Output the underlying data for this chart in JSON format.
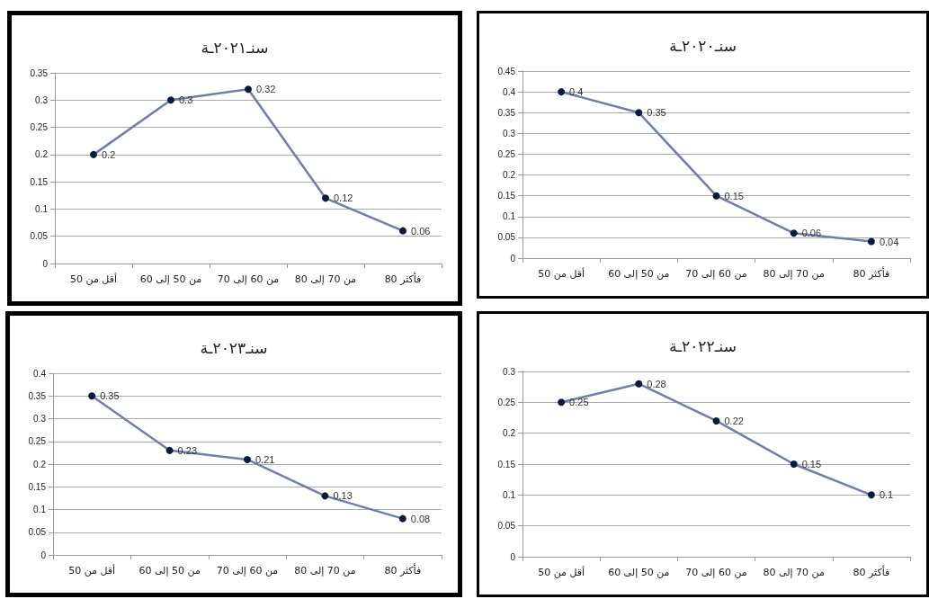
{
  "chart_data": [
    {
      "type": "line",
      "title": "سنـ٢٠٢١ـة",
      "categories": [
        "أقل من 50",
        "من 50 إلى 60",
        "من 60 إلى 70",
        "من 70 إلى 80",
        "80 فأكثر"
      ],
      "series": [
        {
          "color": "#6f7fa6",
          "values": [
            0.2,
            0.3,
            0.32,
            0.12,
            0.06
          ]
        }
      ],
      "ylim": [
        0,
        0.35
      ],
      "yticks": [
        0,
        0.05,
        0.1,
        0.15,
        0.2,
        0.25,
        0.3,
        0.35
      ],
      "grid": "y",
      "marker": "circle",
      "data_labels": true
    },
    {
      "type": "line",
      "title": "سنـ٢٠٢٠ـة",
      "categories": [
        "أقل من 50",
        "من 50 إلى 60",
        "من 60 إلى 70",
        "من 70 إلى 80",
        "80 فأكثر"
      ],
      "series": [
        {
          "color": "#6f7fa6",
          "values": [
            0.4,
            0.35,
            0.15,
            0.06,
            0.04
          ]
        }
      ],
      "ylim": [
        0,
        0.45
      ],
      "yticks": [
        0,
        0.05,
        0.1,
        0.15,
        0.2,
        0.25,
        0.3,
        0.35,
        0.4,
        0.45
      ],
      "grid": "y",
      "marker": "circle",
      "data_labels": true
    },
    {
      "type": "line",
      "title": "سنـ٢٠٢٣ـة",
      "categories": [
        "أقل من 50",
        "من 50 إلى 60",
        "من 60 إلى 70",
        "من 70 إلى 80",
        "80 فأكثر"
      ],
      "series": [
        {
          "color": "#6f7fa6",
          "values": [
            0.35,
            0.23,
            0.21,
            0.13,
            0.08
          ]
        }
      ],
      "ylim": [
        0,
        0.4
      ],
      "yticks": [
        0,
        0.05,
        0.1,
        0.15,
        0.2,
        0.25,
        0.3,
        0.35,
        0.4
      ],
      "grid": "y",
      "marker": "circle",
      "data_labels": true
    },
    {
      "type": "line",
      "title": "سنـ٢٠٢٢ـة",
      "categories": [
        "أقل من 50",
        "من 50 إلى 60",
        "من 60 إلى 70",
        "من 70 إلى 80",
        "80 فأكثر"
      ],
      "series": [
        {
          "color": "#6f7fa6",
          "values": [
            0.25,
            0.28,
            0.22,
            0.15,
            0.1
          ]
        }
      ],
      "ylim": [
        0,
        0.3
      ],
      "yticks": [
        0,
        0.05,
        0.1,
        0.15,
        0.2,
        0.25,
        0.3
      ],
      "grid": "y",
      "marker": "circle",
      "data_labels": true
    }
  ]
}
